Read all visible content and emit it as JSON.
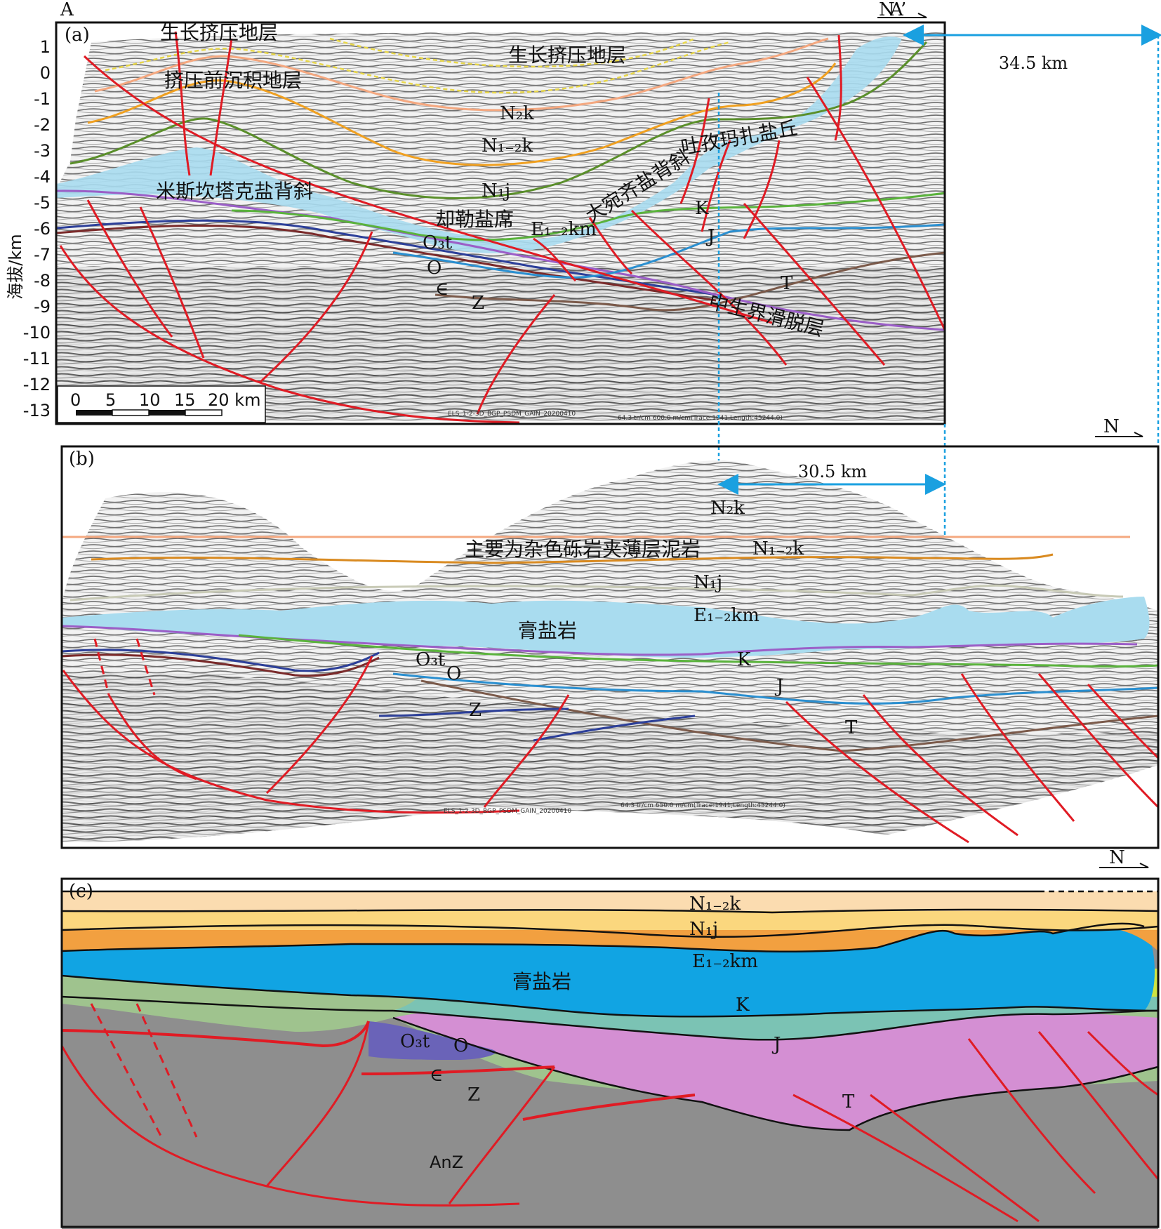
{
  "panel_a": {
    "label": "(a)",
    "section_start": "A",
    "section_end": "A’",
    "north": "N",
    "y_axis_label": "海拔/km",
    "y_ticks": [
      "1",
      "0",
      "-1",
      "-2",
      "-3",
      "-4",
      "-5",
      "-6",
      "-7",
      "-8",
      "-9",
      "-10",
      "-11",
      "-12",
      "-13"
    ],
    "scale_ticks": [
      "0",
      "5",
      "10",
      "15",
      "20 km"
    ],
    "distance": "34.5 km",
    "labels": {
      "growth_top": "生长挤压地层",
      "growth_center": "生长挤压地层",
      "pre_compression": "挤压前沉积地层",
      "misi_anticline": "米斯坎塔克盐背斜",
      "dawanqi_anticline": "大宛齐盐背斜",
      "tuzimaza_dome": "吐孜玛扎盐丘",
      "quele_salt": "却勒盐席",
      "mesozoic_detachment": "中生界滑脱层",
      "N2k": "N₂k",
      "N12k": "N₁₋₂k",
      "N1j": "N₁j",
      "E12km": "E₁₋₂km",
      "K": "K",
      "J": "J",
      "T": "T",
      "O3t": "O₃t",
      "O": "O",
      "Cam": "∈",
      "Z": "Z"
    },
    "survey_note": "ELS_1-2-3D_BGP_PSDM_GAIN_20200410",
    "trace_note": "64.3 tr/cm 600.0 m/cm(Trace:1941,Length:45244.0)"
  },
  "panel_b": {
    "label": "(b)",
    "north": "N",
    "distance": "30.5 km",
    "labels": {
      "N2k": "N₂k",
      "conglomerate_note": "主要为杂色砾岩夹薄层泥岩",
      "N12k": "N₁₋₂k",
      "N1j": "N₁j",
      "E12km": "E₁₋₂km",
      "gypsum_salt": "膏盐岩",
      "K": "K",
      "J": "J",
      "T": "T",
      "O3t": "O₃t",
      "O": "O",
      "Z": "Z"
    },
    "survey_note": "ELS_1-2-3D_BGP_PSDM_GAIN_20200410",
    "trace_note": "64.3 tr/cm 650.0 m/cm(Trace:1941,Length:45244.0)"
  },
  "panel_c": {
    "label": "(c)",
    "north": "N",
    "labels": {
      "N12k": "N₁₋₂k",
      "N1j": "N₁j",
      "E12km": "E₁₋₂km",
      "gypsum_salt": "膏盐岩",
      "K": "K",
      "J": "J",
      "T": "T",
      "O3t": "O₃t",
      "O": "O",
      "Cam": "∈",
      "Z": "Z",
      "AnZ": "AnZ"
    }
  },
  "colors": {
    "fault": "#e01b24",
    "salt_seismic": "#a9dcef",
    "salt_model": "#11a4e3",
    "N12k": "#fbdcb0",
    "N1j": "#fbd77e",
    "E12km": "#f2a040",
    "K": "#cfe443",
    "J": "#7bc3b4",
    "T": "#d48fd3",
    "Paleozoic": "#9fc38e",
    "Ordovician": "#6a63b8",
    "basement": "#8e8e8e",
    "distance_arrow": "#1aa0e0"
  }
}
